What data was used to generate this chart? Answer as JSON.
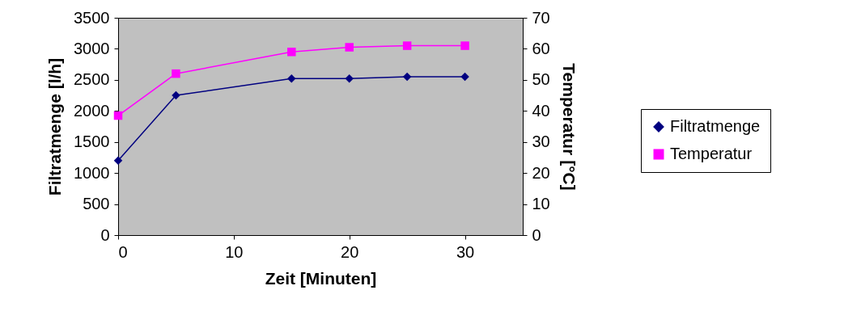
{
  "chart_data": {
    "type": "line",
    "xlabel": "Zeit [Minuten]",
    "ylabel": "Filtratmenge [l/h]",
    "y2label": "Temperatur [°C]",
    "x": [
      0,
      5,
      15,
      20,
      25,
      30
    ],
    "series": [
      {
        "name": "Filtratmenge",
        "color": "#000080",
        "marker": "diamond",
        "values": [
          1200,
          2250,
          2520,
          2520,
          2550,
          2550
        ]
      },
      {
        "name": "Temperatur",
        "color": "#ff00ff",
        "marker": "square",
        "axis": "y2",
        "values": [
          38.5,
          52,
          59,
          60.5,
          61,
          61
        ]
      }
    ],
    "xlim": [
      0,
      35
    ],
    "xticks": [
      0,
      10,
      20,
      30
    ],
    "ylim": [
      0,
      3500
    ],
    "yticks": [
      0,
      500,
      1000,
      1500,
      2000,
      2500,
      3000,
      3500
    ],
    "y2lim": [
      0,
      70
    ],
    "y2ticks": [
      0,
      10,
      20,
      30,
      40,
      50,
      60,
      70
    ],
    "grid": false,
    "legend": "right"
  }
}
